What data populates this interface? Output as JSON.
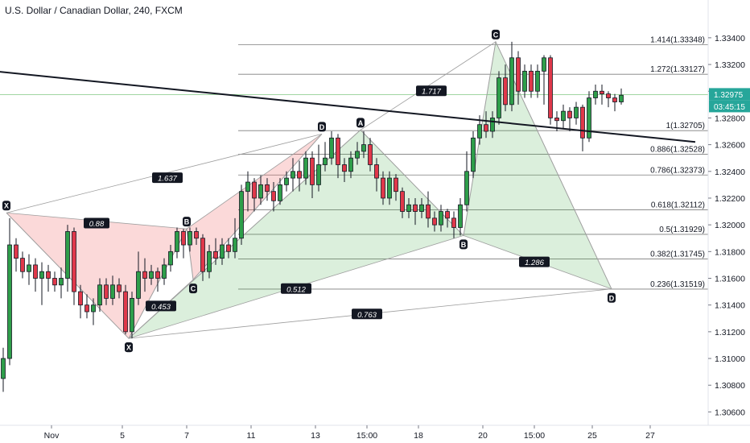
{
  "title": "U.S. Dollar / Canadian Dollar, 240, FXCM",
  "chart_data": {
    "type": "candlestick",
    "title": "U.S. Dollar / Canadian Dollar, 240, FXCM",
    "ylim": [
      1.305,
      1.3355
    ],
    "xlim": [
      0,
      110
    ],
    "y_ticks": [
      "1.33400",
      "1.33200",
      "1.33000",
      "1.32800",
      "1.32600",
      "1.32400",
      "1.32200",
      "1.32000",
      "1.31800",
      "1.31600",
      "1.31400",
      "1.31200",
      "1.31000",
      "1.30800",
      "1.30600"
    ],
    "y_tick_values": [
      1.334,
      1.332,
      1.33,
      1.328,
      1.326,
      1.324,
      1.322,
      1.32,
      1.318,
      1.316,
      1.314,
      1.312,
      1.31,
      1.308,
      1.306
    ],
    "x_ticks": [
      {
        "label": "Nov",
        "x": 8
      },
      {
        "label": "5",
        "x": 19
      },
      {
        "label": "7",
        "x": 29
      },
      {
        "label": "11",
        "x": 39
      },
      {
        "label": "13",
        "x": 49
      },
      {
        "label": "15:00",
        "x": 57
      },
      {
        "label": "18",
        "x": 65
      },
      {
        "label": "20",
        "x": 75
      },
      {
        "label": "15:00",
        "x": 83
      },
      {
        "label": "25",
        "x": 92
      },
      {
        "label": "27",
        "x": 101
      }
    ],
    "current_price": "1.32975",
    "countdown": "03:45:15",
    "fib_levels": [
      {
        "label": "1.414(1.33348)",
        "value": 1.33348
      },
      {
        "label": "1.272(1.33127)",
        "value": 1.33127
      },
      {
        "label": "1(1.32705)",
        "value": 1.32705
      },
      {
        "label": "0.886(1.32528)",
        "value": 1.32528
      },
      {
        "label": "0.786(1.32373)",
        "value": 1.32373
      },
      {
        "label": "0.618(1.32112)",
        "value": 1.32112
      },
      {
        "label": "0.5(1.31929)",
        "value": 1.31929
      },
      {
        "label": "0.382(1.31745)",
        "value": 1.31745
      },
      {
        "label": "0.236(1.31519)",
        "value": 1.31519
      }
    ],
    "trendline": {
      "x1": -1,
      "y1": 1.3315,
      "x2": 108,
      "y2": 1.3262
    },
    "patterns": [
      {
        "color": "red",
        "points": [
          {
            "label": "X",
            "x": 1,
            "y": 1.3209
          },
          {
            "label": "A",
            "x": 20,
            "y": 1.3115
          },
          {
            "label": "B",
            "x": 29,
            "y": 1.3197
          },
          {
            "label": "C",
            "x": 30,
            "y": 1.3159
          },
          {
            "label": "D",
            "x": 50,
            "y": 1.3268
          }
        ]
      },
      {
        "color": "green",
        "points": [
          {
            "label": "X",
            "x": 20,
            "y": 1.3115
          },
          {
            "label": "A",
            "x": 56,
            "y": 1.3271
          },
          {
            "label": "B",
            "x": 72,
            "y": 1.3192
          },
          {
            "label": "C",
            "x": 77,
            "y": 1.3337
          },
          {
            "label": "D",
            "x": 95,
            "y": 1.3152
          }
        ]
      }
    ],
    "ratios": [
      {
        "label": "0.88",
        "x": 15,
        "y": 1.3201
      },
      {
        "label": "1.637",
        "x": 26,
        "y": 1.3235
      },
      {
        "label": "0.453",
        "x": 25,
        "y": 1.3139
      },
      {
        "label": "0.512",
        "x": 46,
        "y": 1.3152
      },
      {
        "label": "0.763",
        "x": 57,
        "y": 1.3133
      },
      {
        "label": "1.717",
        "x": 67,
        "y": 1.33
      },
      {
        "label": "1.286",
        "x": 83,
        "y": 1.3172
      }
    ],
    "candles": [
      [
        1.3085,
        1.31,
        1.3075,
        1.3108
      ],
      [
        1.31,
        1.3185,
        1.3095,
        1.3205
      ],
      [
        1.3185,
        1.3175,
        1.3165,
        1.319
      ],
      [
        1.3175,
        1.3165,
        1.316,
        1.318
      ],
      [
        1.3165,
        1.317,
        1.3155,
        1.3178
      ],
      [
        1.317,
        1.316,
        1.315,
        1.3175
      ],
      [
        1.316,
        1.3165,
        1.314,
        1.3172
      ],
      [
        1.3165,
        1.316,
        1.315,
        1.317
      ],
      [
        1.316,
        1.3155,
        1.315,
        1.3165
      ],
      [
        1.3155,
        1.316,
        1.3145,
        1.3168
      ],
      [
        1.316,
        1.3195,
        1.315,
        1.32
      ],
      [
        1.3195,
        1.315,
        1.314,
        1.3198
      ],
      [
        1.315,
        1.314,
        1.313,
        1.3155
      ],
      [
        1.314,
        1.3135,
        1.313,
        1.3148
      ],
      [
        1.3135,
        1.314,
        1.3125,
        1.3145
      ],
      [
        1.314,
        1.3155,
        1.3135,
        1.316
      ],
      [
        1.3155,
        1.3145,
        1.314,
        1.316
      ],
      [
        1.3145,
        1.3155,
        1.314,
        1.3162
      ],
      [
        1.3155,
        1.315,
        1.3145,
        1.316
      ],
      [
        1.315,
        1.312,
        1.3118,
        1.3155
      ],
      [
        1.312,
        1.3145,
        1.3115,
        1.315
      ],
      [
        1.3145,
        1.3165,
        1.314,
        1.318
      ],
      [
        1.3165,
        1.316,
        1.315,
        1.3175
      ],
      [
        1.316,
        1.3165,
        1.3155,
        1.317
      ],
      [
        1.3165,
        1.316,
        1.315,
        1.3168
      ],
      [
        1.316,
        1.317,
        1.3155,
        1.3175
      ],
      [
        1.317,
        1.318,
        1.3165,
        1.3185
      ],
      [
        1.318,
        1.3195,
        1.3175,
        1.3198
      ],
      [
        1.3195,
        1.3185,
        1.3175,
        1.3197
      ],
      [
        1.3185,
        1.3195,
        1.318,
        1.3198
      ],
      [
        1.3195,
        1.319,
        1.3185,
        1.3198
      ],
      [
        1.319,
        1.3165,
        1.3158,
        1.3193
      ],
      [
        1.3165,
        1.318,
        1.316,
        1.3185
      ],
      [
        1.318,
        1.3175,
        1.317,
        1.319
      ],
      [
        1.3175,
        1.3185,
        1.317,
        1.319
      ],
      [
        1.3185,
        1.318,
        1.3175,
        1.319
      ],
      [
        1.318,
        1.319,
        1.3175,
        1.3205
      ],
      [
        1.319,
        1.3225,
        1.3185,
        1.323
      ],
      [
        1.3225,
        1.3232,
        1.321,
        1.324
      ],
      [
        1.3232,
        1.322,
        1.321,
        1.3235
      ],
      [
        1.322,
        1.323,
        1.3215,
        1.3237
      ],
      [
        1.323,
        1.3225,
        1.3218,
        1.3235
      ],
      [
        1.3225,
        1.3218,
        1.321,
        1.3232
      ],
      [
        1.3218,
        1.323,
        1.3215,
        1.3235
      ],
      [
        1.323,
        1.3235,
        1.3225,
        1.324
      ],
      [
        1.3235,
        1.324,
        1.3225,
        1.325
      ],
      [
        1.324,
        1.3235,
        1.3225,
        1.3248
      ],
      [
        1.3235,
        1.325,
        1.323,
        1.3255
      ],
      [
        1.325,
        1.323,
        1.322,
        1.3255
      ],
      [
        1.323,
        1.3245,
        1.3225,
        1.326
      ],
      [
        1.3245,
        1.325,
        1.324,
        1.3262
      ],
      [
        1.325,
        1.3265,
        1.3245,
        1.327
      ],
      [
        1.3265,
        1.3245,
        1.3235,
        1.3268
      ],
      [
        1.3245,
        1.324,
        1.3232,
        1.325
      ],
      [
        1.324,
        1.325,
        1.3235,
        1.3255
      ],
      [
        1.325,
        1.3255,
        1.3245,
        1.3262
      ],
      [
        1.3255,
        1.326,
        1.325,
        1.327
      ],
      [
        1.326,
        1.3245,
        1.324,
        1.3265
      ],
      [
        1.3245,
        1.3235,
        1.3225,
        1.325
      ],
      [
        1.3235,
        1.322,
        1.3215,
        1.324
      ],
      [
        1.322,
        1.3235,
        1.3215,
        1.324
      ],
      [
        1.3235,
        1.3225,
        1.3218,
        1.3238
      ],
      [
        1.3225,
        1.321,
        1.3205,
        1.3228
      ],
      [
        1.321,
        1.3215,
        1.3205,
        1.322
      ],
      [
        1.3215,
        1.321,
        1.32,
        1.322
      ],
      [
        1.321,
        1.3215,
        1.3205,
        1.322
      ],
      [
        1.3215,
        1.3205,
        1.3198,
        1.3225
      ],
      [
        1.3205,
        1.32,
        1.3195,
        1.321
      ],
      [
        1.32,
        1.321,
        1.3195,
        1.3215
      ],
      [
        1.321,
        1.3205,
        1.3198,
        1.3212
      ],
      [
        1.3205,
        1.3198,
        1.319,
        1.321
      ],
      [
        1.3198,
        1.3215,
        1.3192,
        1.322
      ],
      [
        1.3215,
        1.324,
        1.321,
        1.3255
      ],
      [
        1.324,
        1.3265,
        1.3235,
        1.327
      ],
      [
        1.3265,
        1.3275,
        1.326,
        1.3282
      ],
      [
        1.3275,
        1.327,
        1.3265,
        1.3285
      ],
      [
        1.327,
        1.328,
        1.3265,
        1.3285
      ],
      [
        1.328,
        1.331,
        1.3275,
        1.3315
      ],
      [
        1.331,
        1.329,
        1.3285,
        1.332
      ],
      [
        1.329,
        1.3325,
        1.3285,
        1.3337
      ],
      [
        1.3325,
        1.33,
        1.329,
        1.333
      ],
      [
        1.33,
        1.3315,
        1.3295,
        1.332
      ],
      [
        1.3315,
        1.33,
        1.3295,
        1.332
      ],
      [
        1.33,
        1.3315,
        1.3295,
        1.332
      ],
      [
        1.3315,
        1.3325,
        1.329,
        1.3327
      ],
      [
        1.3325,
        1.328,
        1.3275,
        1.3327
      ],
      [
        1.328,
        1.3278,
        1.327,
        1.3285
      ],
      [
        1.3278,
        1.3285,
        1.3272,
        1.329
      ],
      [
        1.3285,
        1.328,
        1.327,
        1.3288
      ],
      [
        1.328,
        1.3288,
        1.3275,
        1.3292
      ],
      [
        1.3288,
        1.3265,
        1.3255,
        1.329
      ],
      [
        1.3265,
        1.3295,
        1.3262,
        1.33
      ],
      [
        1.3295,
        1.33,
        1.329,
        1.3305
      ],
      [
        1.33,
        1.3298,
        1.329,
        1.3305
      ],
      [
        1.3298,
        1.3295,
        1.3288,
        1.33
      ],
      [
        1.3295,
        1.3292,
        1.3285,
        1.3298
      ],
      [
        1.3292,
        1.3297,
        1.329,
        1.3302
      ]
    ]
  }
}
